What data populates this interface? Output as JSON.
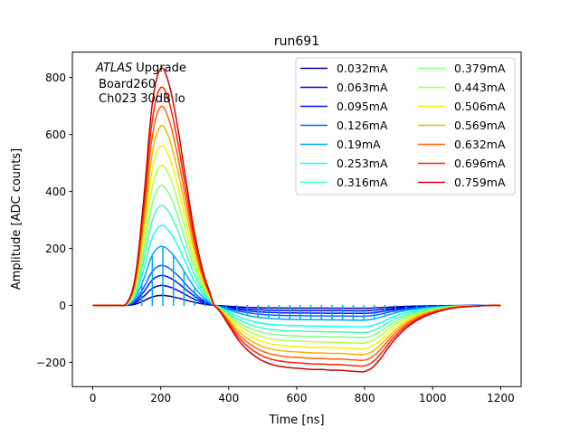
{
  "chart_data": {
    "type": "line",
    "title": "run691",
    "xlabel": "Time [ns]",
    "ylabel": "Amplitude [ADC counts]",
    "xlim": [
      -60,
      1260
    ],
    "ylim": [
      -285,
      889
    ],
    "xticks": [
      0,
      200,
      400,
      600,
      800,
      1000,
      1200
    ],
    "xtick_labels": [
      "0",
      "200",
      "400",
      "600",
      "800",
      "1000",
      "1200"
    ],
    "yticks": [
      -200,
      0,
      200,
      400,
      600,
      800
    ],
    "ytick_labels": [
      "−200",
      "0",
      "200",
      "400",
      "600",
      "800"
    ],
    "grid": false,
    "legend_placement": "top-right",
    "legend_columns": 2,
    "annotation": {
      "atlas": "ATLAS",
      "upgrade": "Upgrade",
      "board": "Board260",
      "channel": "Ch023 30dB lo"
    },
    "x": [
      0,
      25,
      50,
      75,
      100,
      125,
      150,
      175,
      200,
      225,
      250,
      275,
      300,
      325,
      350,
      375,
      400,
      425,
      450,
      475,
      500,
      525,
      550,
      575,
      600,
      625,
      650,
      675,
      700,
      725,
      750,
      775,
      800,
      825,
      850,
      875,
      900,
      925,
      950,
      975,
      1000,
      1025,
      1050,
      1075,
      1100,
      1125,
      1150,
      1175,
      1200
    ],
    "pulse_shape": [
      0,
      0,
      0,
      0,
      0.01,
      0.12,
      0.45,
      0.85,
      1.0,
      0.93,
      0.75,
      0.52,
      0.3,
      0.14,
      0.03,
      -0.1,
      -0.3,
      -0.5,
      -0.65,
      -0.76,
      -0.84,
      -0.89,
      -0.92,
      -0.94,
      -0.95,
      -0.96,
      -0.97,
      -0.97,
      -0.98,
      -0.98,
      -0.99,
      -1,
      -1,
      -0.93,
      -0.78,
      -0.6,
      -0.45,
      -0.33,
      -0.24,
      -0.17,
      -0.12,
      -0.08,
      -0.05,
      -0.03,
      -0.02,
      -0.01,
      -0.005,
      0,
      0
    ],
    "series": [
      {
        "name": "0.032mA",
        "color": "#00008f",
        "peak": 35,
        "min": -10
      },
      {
        "name": "0.063mA",
        "color": "#0000e0",
        "peak": 70,
        "min": -19
      },
      {
        "name": "0.095mA",
        "color": "#0010ff",
        "peak": 105,
        "min": -28
      },
      {
        "name": "0.126mA",
        "color": "#0060ff",
        "peak": 140,
        "min": -38
      },
      {
        "name": "0.19mA",
        "color": "#00a4ff",
        "peak": 207,
        "min": -52,
        "dropouts": {
          "start": 144,
          "step": 31.1,
          "end": 1016
        }
      },
      {
        "name": "0.253mA",
        "color": "#10ffef",
        "peak": 280,
        "min": -75
      },
      {
        "name": "0.316mA",
        "color": "#40ffb0",
        "peak": 350,
        "min": -95
      },
      {
        "name": "0.379mA",
        "color": "#80ff80",
        "peak": 420,
        "min": -113
      },
      {
        "name": "0.443mA",
        "color": "#b0ff47",
        "peak": 490,
        "min": -132
      },
      {
        "name": "0.506mA",
        "color": "#f0f500",
        "peak": 560,
        "min": -152
      },
      {
        "name": "0.569mA",
        "color": "#ffb000",
        "peak": 630,
        "min": -172
      },
      {
        "name": "0.632mA",
        "color": "#ff6000",
        "peak": 698,
        "min": -192
      },
      {
        "name": "0.696mA",
        "color": "#ff2000",
        "peak": 765,
        "min": -212
      },
      {
        "name": "0.759mA",
        "color": "#d00000",
        "peak": 832,
        "min": -232
      }
    ]
  }
}
